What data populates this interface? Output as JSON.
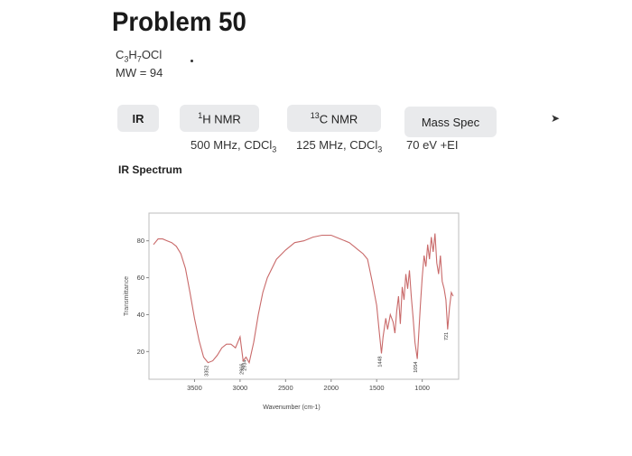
{
  "page": {
    "title": "Problem 50",
    "formula": "C3H7OCl",
    "mw": "MW = 94"
  },
  "tabs": [
    {
      "label": "IR",
      "sub": ""
    },
    {
      "label": "1H NMR",
      "sub": "500 MHz, CDCl3"
    },
    {
      "label": "13C NMR",
      "sub": "125 MHz, CDCl3"
    },
    {
      "label": "Mass Spec",
      "sub": "70 eV +EI"
    }
  ],
  "spectrum_heading": "IR Spectrum",
  "chart_data": {
    "type": "line",
    "xlabel": "Wavenumber (cm-1)",
    "ylabel": "Transmittance",
    "xlim": [
      4000,
      600
    ],
    "ylim": [
      5,
      95
    ],
    "x_ticks": [
      3500,
      3000,
      2500,
      2000,
      1500,
      1000
    ],
    "y_ticks": [
      20,
      40,
      60,
      80
    ],
    "grid": false,
    "series": [
      {
        "color": "#c96a6a",
        "x": [
          3950,
          3900,
          3850,
          3800,
          3750,
          3700,
          3650,
          3600,
          3550,
          3500,
          3450,
          3400,
          3352,
          3300,
          3250,
          3200,
          3150,
          3100,
          3050,
          3000,
          2966,
          2934,
          2900,
          2850,
          2800,
          2750,
          2700,
          2600,
          2500,
          2400,
          2300,
          2200,
          2100,
          2000,
          1900,
          1800,
          1750,
          1700,
          1650,
          1600,
          1550,
          1500,
          1470,
          1448,
          1430,
          1400,
          1380,
          1350,
          1320,
          1300,
          1280,
          1260,
          1240,
          1220,
          1200,
          1180,
          1160,
          1140,
          1120,
          1100,
          1080,
          1054,
          1040,
          1020,
          1000,
          980,
          960,
          940,
          920,
          900,
          880,
          860,
          840,
          820,
          800,
          780,
          760,
          740,
          721,
          700,
          680,
          660
        ],
        "y": [
          78,
          81,
          81,
          80,
          79,
          77,
          73,
          65,
          52,
          38,
          26,
          17,
          14,
          15,
          18,
          22,
          24,
          24,
          22,
          28,
          15,
          17,
          14,
          25,
          40,
          52,
          60,
          70,
          75,
          79,
          80,
          82,
          83,
          83,
          81,
          79,
          77,
          75,
          73,
          70,
          58,
          45,
          30,
          19,
          28,
          38,
          32,
          40,
          36,
          30,
          42,
          50,
          35,
          55,
          48,
          62,
          54,
          64,
          50,
          38,
          25,
          16,
          28,
          45,
          60,
          72,
          66,
          78,
          70,
          82,
          74,
          84,
          68,
          62,
          72,
          58,
          54,
          48,
          32,
          44,
          52,
          50
        ]
      }
    ],
    "peak_labels": [
      {
        "x": 3352,
        "y": 14,
        "text": "3352"
      },
      {
        "x": 2966,
        "y": 15,
        "text": "2966"
      },
      {
        "x": 2934,
        "y": 17,
        "text": "2934"
      },
      {
        "x": 1448,
        "y": 19,
        "text": "1448"
      },
      {
        "x": 1054,
        "y": 16,
        "text": "1054"
      },
      {
        "x": 721,
        "y": 32,
        "text": "721"
      }
    ]
  }
}
